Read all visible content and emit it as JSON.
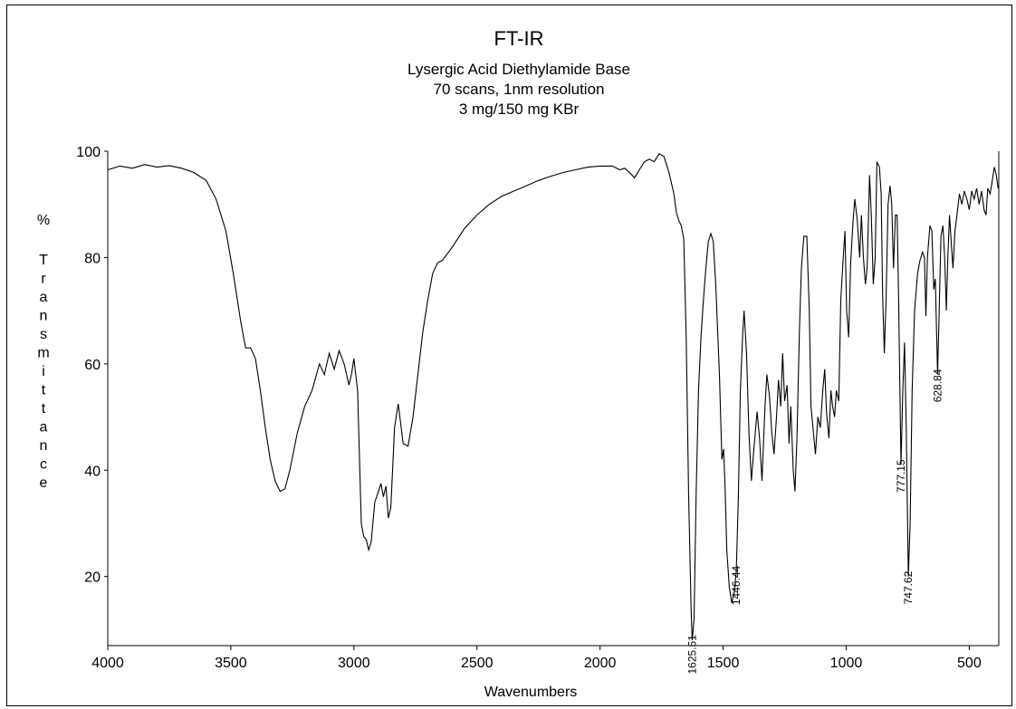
{
  "chart_data": {
    "type": "line",
    "title": "FT-IR",
    "subtitle": [
      "Lysergic Acid Diethylamide Base",
      "70 scans, 1nm resolution",
      "3 mg/150 mg KBr"
    ],
    "xlabel": "Wavenumbers",
    "ylabel": "% Transmittance",
    "xlim": [
      4000,
      380
    ],
    "ylim": [
      7,
      100
    ],
    "x_reversed": true,
    "grid": false,
    "x_ticks": [
      4000,
      3500,
      3000,
      2500,
      2000,
      1500,
      1000,
      500
    ],
    "y_ticks": [
      20,
      40,
      60,
      80,
      100
    ],
    "series": [
      {
        "color": "#000000",
        "points": [
          [
            4000,
            96.5
          ],
          [
            3950,
            97.2
          ],
          [
            3900,
            96.8
          ],
          [
            3850,
            97.5
          ],
          [
            3800,
            97.0
          ],
          [
            3750,
            97.3
          ],
          [
            3700,
            96.8
          ],
          [
            3650,
            96.0
          ],
          [
            3600,
            94.5
          ],
          [
            3560,
            91.0
          ],
          [
            3520,
            85.0
          ],
          [
            3490,
            77.0
          ],
          [
            3460,
            68.0
          ],
          [
            3440,
            63.0
          ],
          [
            3420,
            63.0
          ],
          [
            3400,
            61.0
          ],
          [
            3380,
            55.0
          ],
          [
            3360,
            48.0
          ],
          [
            3340,
            42.0
          ],
          [
            3320,
            38.0
          ],
          [
            3300,
            36.0
          ],
          [
            3280,
            36.5
          ],
          [
            3260,
            40.0
          ],
          [
            3230,
            47.0
          ],
          [
            3200,
            52.0
          ],
          [
            3170,
            55.0
          ],
          [
            3140,
            60.0
          ],
          [
            3120,
            58.0
          ],
          [
            3100,
            62.0
          ],
          [
            3080,
            59.0
          ],
          [
            3060,
            62.5
          ],
          [
            3040,
            60.0
          ],
          [
            3020,
            56.0
          ],
          [
            3010,
            58.0
          ],
          [
            3000,
            61.0
          ],
          [
            2985,
            55.0
          ],
          [
            2970,
            30.0
          ],
          [
            2960,
            27.5
          ],
          [
            2950,
            27.0
          ],
          [
            2940,
            25.0
          ],
          [
            2930,
            26.5
          ],
          [
            2915,
            34.0
          ],
          [
            2900,
            36.0
          ],
          [
            2890,
            37.5
          ],
          [
            2880,
            35.0
          ],
          [
            2870,
            37.0
          ],
          [
            2860,
            31.0
          ],
          [
            2850,
            33.0
          ],
          [
            2835,
            48.0
          ],
          [
            2820,
            52.5
          ],
          [
            2800,
            45.0
          ],
          [
            2780,
            44.5
          ],
          [
            2760,
            50.0
          ],
          [
            2740,
            58.0
          ],
          [
            2720,
            66.0
          ],
          [
            2700,
            72.0
          ],
          [
            2680,
            77.0
          ],
          [
            2660,
            79.0
          ],
          [
            2640,
            79.5
          ],
          [
            2600,
            82.0
          ],
          [
            2550,
            85.5
          ],
          [
            2500,
            88.0
          ],
          [
            2450,
            90.0
          ],
          [
            2400,
            91.5
          ],
          [
            2350,
            92.5
          ],
          [
            2300,
            93.5
          ],
          [
            2250,
            94.5
          ],
          [
            2200,
            95.3
          ],
          [
            2150,
            96.0
          ],
          [
            2100,
            96.5
          ],
          [
            2050,
            97.0
          ],
          [
            2000,
            97.2
          ],
          [
            1950,
            97.2
          ],
          [
            1920,
            96.5
          ],
          [
            1900,
            96.8
          ],
          [
            1880,
            96.0
          ],
          [
            1860,
            95.0
          ],
          [
            1840,
            96.5
          ],
          [
            1820,
            98.0
          ],
          [
            1800,
            98.5
          ],
          [
            1780,
            98.0
          ],
          [
            1760,
            99.5
          ],
          [
            1740,
            99.0
          ],
          [
            1720,
            96.0
          ],
          [
            1700,
            92.0
          ],
          [
            1690,
            88.5
          ],
          [
            1680,
            87.0
          ],
          [
            1670,
            86.0
          ],
          [
            1660,
            83.5
          ],
          [
            1650,
            65.0
          ],
          [
            1640,
            35.0
          ],
          [
            1630,
            14.0
          ],
          [
            1625.51,
            8.0
          ],
          [
            1618,
            12.0
          ],
          [
            1610,
            35.0
          ],
          [
            1600,
            55.0
          ],
          [
            1590,
            65.0
          ],
          [
            1580,
            72.0
          ],
          [
            1570,
            78.0
          ],
          [
            1560,
            83.0
          ],
          [
            1550,
            84.5
          ],
          [
            1540,
            83.0
          ],
          [
            1530,
            75.0
          ],
          [
            1515,
            58.0
          ],
          [
            1505,
            42.0
          ],
          [
            1498,
            44.0
          ],
          [
            1492,
            37.0
          ],
          [
            1485,
            25.0
          ],
          [
            1475,
            18.0
          ],
          [
            1465,
            15.0
          ],
          [
            1455,
            17.0
          ],
          [
            1446.44,
            21.0
          ],
          [
            1438,
            35.0
          ],
          [
            1430,
            55.0
          ],
          [
            1420,
            66.0
          ],
          [
            1415,
            70.0
          ],
          [
            1405,
            62.0
          ],
          [
            1395,
            47.0
          ],
          [
            1385,
            38.0
          ],
          [
            1375,
            44.0
          ],
          [
            1362,
            51.0
          ],
          [
            1352,
            46.0
          ],
          [
            1342,
            38.0
          ],
          [
            1330,
            52.0
          ],
          [
            1322,
            58.0
          ],
          [
            1312,
            54.0
          ],
          [
            1302,
            47.0
          ],
          [
            1293,
            43.0
          ],
          [
            1283,
            50.0
          ],
          [
            1275,
            57.0
          ],
          [
            1266,
            52.0
          ],
          [
            1258,
            62.0
          ],
          [
            1250,
            53.0
          ],
          [
            1240,
            56.0
          ],
          [
            1232,
            45.0
          ],
          [
            1225,
            52.0
          ],
          [
            1215,
            40.0
          ],
          [
            1208,
            36.0
          ],
          [
            1200,
            46.0
          ],
          [
            1190,
            66.0
          ],
          [
            1182,
            78.0
          ],
          [
            1172,
            84.0
          ],
          [
            1160,
            84.0
          ],
          [
            1150,
            70.0
          ],
          [
            1143,
            52.0
          ],
          [
            1135,
            48.0
          ],
          [
            1125,
            43.0
          ],
          [
            1115,
            50.0
          ],
          [
            1105,
            48.0
          ],
          [
            1095,
            55.0
          ],
          [
            1087,
            59.0
          ],
          [
            1080,
            51.0
          ],
          [
            1070,
            46.0
          ],
          [
            1062,
            55.0
          ],
          [
            1055,
            52.0
          ],
          [
            1047,
            50.0
          ],
          [
            1040,
            55.0
          ],
          [
            1030,
            53.0
          ],
          [
            1022,
            72.0
          ],
          [
            1012,
            80.0
          ],
          [
            1005,
            85.0
          ],
          [
            998,
            70.0
          ],
          [
            990,
            65.0
          ],
          [
            982,
            79.0
          ],
          [
            972,
            87.0
          ],
          [
            965,
            91.0
          ],
          [
            955,
            87.0
          ],
          [
            945,
            80.0
          ],
          [
            938,
            88.0
          ],
          [
            930,
            80.0
          ],
          [
            922,
            75.0
          ],
          [
            915,
            78.0
          ],
          [
            905,
            95.5
          ],
          [
            898,
            88.0
          ],
          [
            890,
            75.0
          ],
          [
            882,
            80.0
          ],
          [
            875,
            98.0
          ],
          [
            865,
            97.0
          ],
          [
            858,
            92.0
          ],
          [
            852,
            73.0
          ],
          [
            845,
            62.0
          ],
          [
            838,
            72.0
          ],
          [
            830,
            90.0
          ],
          [
            822,
            93.5
          ],
          [
            815,
            90.0
          ],
          [
            808,
            78.0
          ],
          [
            800,
            88.0
          ],
          [
            793,
            88.0
          ],
          [
            787,
            72.0
          ],
          [
            777.15,
            41.0
          ],
          [
            770,
            55.0
          ],
          [
            763,
            64.0
          ],
          [
            756,
            48.0
          ],
          [
            747.62,
            20.0
          ],
          [
            740,
            30.0
          ],
          [
            732,
            55.0
          ],
          [
            722,
            70.0
          ],
          [
            710,
            77.0
          ],
          [
            700,
            79.5
          ],
          [
            690,
            81.0
          ],
          [
            682,
            80.0
          ],
          [
            676,
            69.0
          ],
          [
            670,
            80.0
          ],
          [
            660,
            86.0
          ],
          [
            652,
            85.0
          ],
          [
            644,
            74.0
          ],
          [
            638,
            76.0
          ],
          [
            628.84,
            58.0
          ],
          [
            622,
            70.0
          ],
          [
            615,
            84.0
          ],
          [
            607,
            86.0
          ],
          [
            600,
            80.0
          ],
          [
            593,
            70.0
          ],
          [
            587,
            80.0
          ],
          [
            580,
            88.0
          ],
          [
            572,
            82.0
          ],
          [
            566,
            78.0
          ],
          [
            558,
            85.0
          ],
          [
            550,
            88.0
          ],
          [
            540,
            92.0
          ],
          [
            530,
            90.0
          ],
          [
            520,
            92.5
          ],
          [
            510,
            91.0
          ],
          [
            500,
            89.0
          ],
          [
            490,
            92.5
          ],
          [
            480,
            91.0
          ],
          [
            470,
            93.0
          ],
          [
            460,
            90.0
          ],
          [
            450,
            92.5
          ],
          [
            440,
            89.0
          ],
          [
            432,
            88.0
          ],
          [
            425,
            93.0
          ],
          [
            415,
            92.0
          ],
          [
            405,
            95.0
          ],
          [
            398,
            97.0
          ],
          [
            390,
            95.5
          ],
          [
            383,
            93.0
          ]
        ]
      }
    ],
    "annotations": [
      {
        "text": "1625.51",
        "x": 1625.51,
        "y": 8.0
      },
      {
        "text": "1446.44",
        "x": 1446.44,
        "y": 21.0
      },
      {
        "text": "777.15",
        "x": 777.15,
        "y": 41.0
      },
      {
        "text": "747.62",
        "x": 747.62,
        "y": 20.0
      },
      {
        "text": "628.84",
        "x": 628.84,
        "y": 58.0
      }
    ]
  }
}
